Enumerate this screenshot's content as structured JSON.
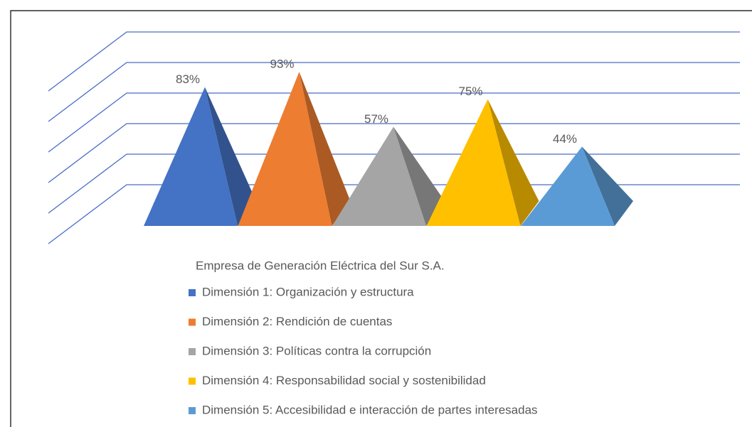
{
  "chart_data": {
    "type": "pyramid",
    "categories": [
      "Empresa de Generación Eléctrica del Sur S.A."
    ],
    "series": [
      {
        "name": "Dimensión 1: Organización y estructura",
        "color": "#4472c4",
        "values": [
          83
        ],
        "value_labels": [
          "83%"
        ]
      },
      {
        "name": "Dimensión 2: Rendición de cuentas",
        "color": "#ed7d31",
        "values": [
          93
        ],
        "value_labels": [
          "93%"
        ]
      },
      {
        "name": "Dimensión 3: Políticas contra la corrupción",
        "color": "#a5a5a5",
        "values": [
          57
        ],
        "value_labels": [
          "57%"
        ]
      },
      {
        "name": "Dimensión 4: Responsabilidad social y sostenibilidad",
        "color": "#ffc000",
        "values": [
          75
        ],
        "value_labels": [
          "75%"
        ]
      },
      {
        "name": "Dimensión 5: Accesibilidad e interacción de partes interesadas",
        "color": "#5b9bd5",
        "values": [
          44
        ],
        "value_labels": [
          "44%"
        ]
      }
    ],
    "ylim": [
      0,
      100
    ],
    "yticks": [
      0,
      20,
      40,
      60,
      80,
      100
    ],
    "grid": true
  }
}
